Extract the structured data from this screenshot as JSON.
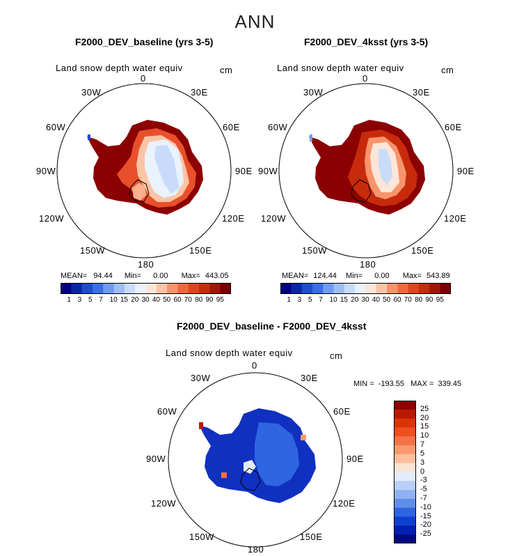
{
  "title": "ANN",
  "units": "cm",
  "field_name": "Land snow depth water equiv",
  "lon_labels": [
    "0",
    "30E",
    "60E",
    "90E",
    "120E",
    "150E",
    "180",
    "150W",
    "120W",
    "90W",
    "60W",
    "30W"
  ],
  "panels": [
    {
      "title": "F2000_DEV_baseline (yrs 3-5)",
      "stats": {
        "mean_label": "MEAN=",
        "mean": "94.44",
        "min_label": "Min=",
        "min": "0.00",
        "max_label": "Max=",
        "max": "443.05"
      }
    },
    {
      "title": "F2000_DEV_4ksst (yrs 3-5)",
      "stats": {
        "mean_label": "MEAN=",
        "mean": "124.44",
        "min_label": "Min=",
        "min": "0.00",
        "max_label": "Max=",
        "max": "543.89"
      }
    }
  ],
  "abs_colorbar": {
    "ticks": [
      "1",
      "3",
      "5",
      "7",
      "10",
      "15",
      "20",
      "30",
      "40",
      "50",
      "60",
      "70",
      "80",
      "90",
      "95"
    ],
    "colors": [
      "#00007f",
      "#0a25a6",
      "#1f4bd1",
      "#3a6fe6",
      "#6f9bf0",
      "#9cbff5",
      "#c8dcfa",
      "#e9f2fd",
      "#fde6d8",
      "#fbc4a6",
      "#f7946c",
      "#ef6a3b",
      "#e3431c",
      "#c72b0c",
      "#a01604",
      "#780000"
    ]
  },
  "diff_panel": {
    "title": "F2000_DEV_baseline - F2000_DEV_4ksst",
    "stats": {
      "min_label": "MIN =",
      "min": "-193.55",
      "max_label": "MAX =",
      "max": "339.45"
    },
    "colorbar": {
      "ticks": [
        "25",
        "20",
        "15",
        "10",
        "7",
        "5",
        "3",
        "0",
        "-3",
        "-5",
        "-7",
        "-10",
        "-15",
        "-20",
        "-25"
      ],
      "colors": [
        "#8b0000",
        "#b81a00",
        "#d9340a",
        "#ef4f1f",
        "#f5714a",
        "#f8996f",
        "#fbbf9c",
        "#fde3d2",
        "#e3ecfd",
        "#b8cff8",
        "#8fb2f3",
        "#5f8ee9",
        "#2f65e0",
        "#0e40d0",
        "#0020b0",
        "#000a80"
      ]
    }
  },
  "colors": {
    "background": "#ffffff",
    "high_red": "#8b0000",
    "low_blue": "#00008b"
  }
}
